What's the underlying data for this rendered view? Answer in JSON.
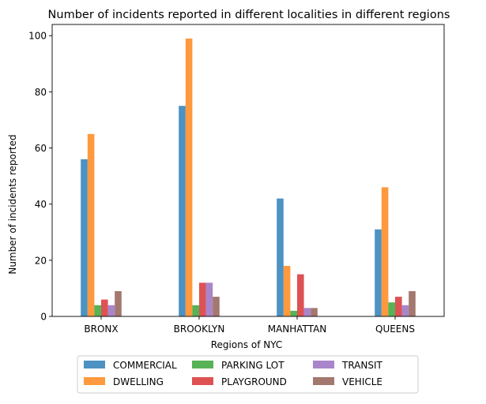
{
  "chart_data": {
    "type": "bar",
    "title": "Number of incidents reported in different localities in different regions",
    "xlabel": "Regions of NYC",
    "ylabel": "Number of incidents reported",
    "categories": [
      "BRONX",
      "BROOKLYN",
      "MANHATTAN",
      "QUEENS"
    ],
    "ylim": [
      0,
      104
    ],
    "yticks": [
      0,
      20,
      40,
      60,
      80,
      100
    ],
    "grid": false,
    "legend_position": "bottom-center",
    "series": [
      {
        "name": "COMMERCIAL",
        "color": "#1f77b4",
        "values": [
          56,
          75,
          42,
          31
        ]
      },
      {
        "name": "DWELLING",
        "color": "#ff7f0e",
        "values": [
          65,
          99,
          18,
          46
        ]
      },
      {
        "name": "PARKING LOT",
        "color": "#2ca02c",
        "values": [
          4,
          4,
          2,
          5
        ]
      },
      {
        "name": "PLAYGROUND",
        "color": "#d62728",
        "values": [
          6,
          12,
          15,
          7
        ]
      },
      {
        "name": "TRANSIT",
        "color": "#9467bd",
        "values": [
          4,
          12,
          3,
          4
        ]
      },
      {
        "name": "VEHICLE",
        "color": "#8c564b",
        "values": [
          9,
          7,
          3,
          9
        ]
      }
    ],
    "bar_opacity": 0.8
  }
}
